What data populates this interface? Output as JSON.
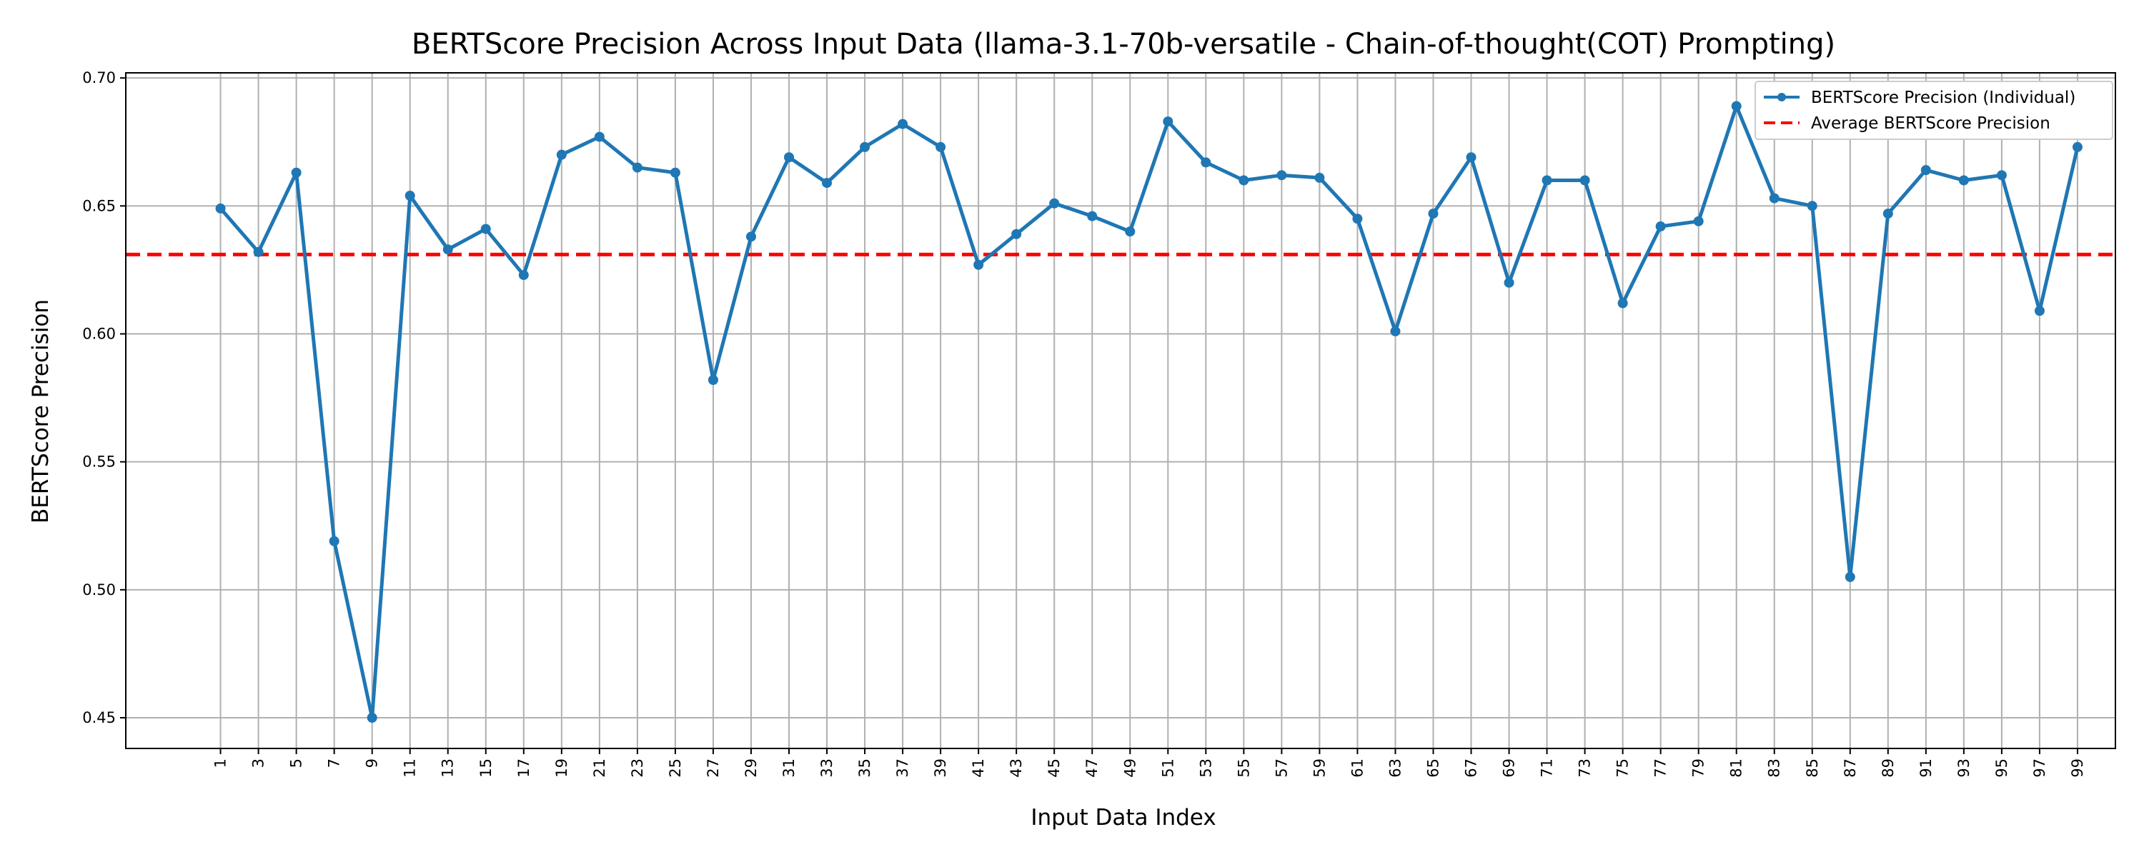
{
  "chart_data": {
    "type": "line",
    "title": "BERTScore Precision Across Input Data (llama-3.1-70b-versatile - Chain-of-thought(COT) Prompting)",
    "xlabel": "Input Data Index",
    "ylabel": "BERTScore Precision",
    "x": [
      1,
      3,
      5,
      7,
      9,
      11,
      13,
      15,
      17,
      19,
      21,
      23,
      25,
      27,
      29,
      31,
      33,
      35,
      37,
      39,
      41,
      43,
      45,
      47,
      49,
      51,
      53,
      55,
      57,
      59,
      61,
      63,
      65,
      67,
      69,
      71,
      73,
      75,
      77,
      79,
      81,
      83,
      85,
      87,
      89,
      91,
      93,
      95,
      97,
      99
    ],
    "x_tick_labels": [
      "1",
      "3",
      "5",
      "7",
      "9",
      "11",
      "13",
      "15",
      "17",
      "19",
      "21",
      "23",
      "25",
      "27",
      "29",
      "31",
      "33",
      "35",
      "37",
      "39",
      "41",
      "43",
      "45",
      "47",
      "49",
      "51",
      "53",
      "55",
      "57",
      "59",
      "61",
      "63",
      "65",
      "67",
      "69",
      "71",
      "73",
      "75",
      "77",
      "79",
      "81",
      "83",
      "85",
      "87",
      "89",
      "91",
      "93",
      "95",
      "97",
      "99"
    ],
    "y_ticks": [
      0.45,
      0.5,
      0.55,
      0.6,
      0.65,
      0.7
    ],
    "y_tick_labels": [
      "0.45",
      "0.50",
      "0.55",
      "0.60",
      "0.65",
      "0.70"
    ],
    "ylim": [
      0.438,
      0.702
    ],
    "xlim": [
      -4,
      101
    ],
    "grid": true,
    "legend_position": "top-right",
    "series": [
      {
        "name": "BERTScore Precision (Individual)",
        "color": "#1f77b4",
        "style": "line-with-markers",
        "values": [
          0.649,
          0.632,
          0.663,
          0.519,
          0.45,
          0.654,
          0.633,
          0.641,
          0.623,
          0.67,
          0.677,
          0.665,
          0.663,
          0.582,
          0.638,
          0.669,
          0.659,
          0.673,
          0.682,
          0.673,
          0.627,
          0.639,
          0.651,
          0.646,
          0.64,
          0.683,
          0.667,
          0.66,
          0.662,
          0.661,
          0.645,
          0.601,
          0.647,
          0.669,
          0.62,
          0.66,
          0.66,
          0.612,
          0.642,
          0.644,
          0.689,
          0.653,
          0.65,
          0.505,
          0.647,
          0.664,
          0.66,
          0.662,
          0.609,
          0.673
        ]
      },
      {
        "name": "Average BERTScore Precision",
        "color": "#ff0000",
        "style": "dashed-horizontal",
        "value": 0.631
      }
    ]
  }
}
